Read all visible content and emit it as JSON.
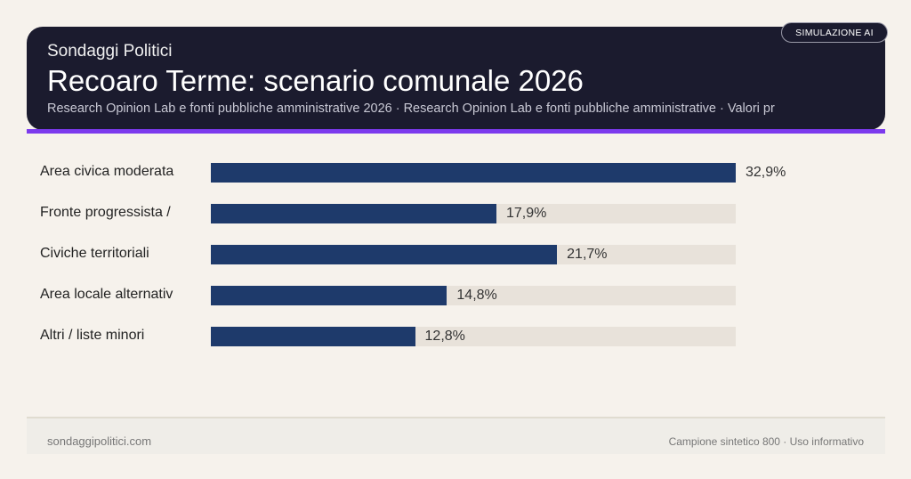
{
  "header": {
    "kicker": "Sondaggi Politici",
    "title": "Recoaro Terme: scenario comunale 2026",
    "subtitle": "Research Opinion Lab e fonti pubbliche amministrative 2026 · Research Opinion Lab e fonti pubbliche amministrative · Valori pr",
    "badge": "SIMULAZIONE AI"
  },
  "colors": {
    "bar": "#1e3a6b",
    "track": "#e8e2da",
    "header": "#1b1b2e",
    "accent": "#7c3aed"
  },
  "chart_data": {
    "type": "bar",
    "orientation": "horizontal",
    "categories": [
      "Area civica moderata",
      "Fronte progressista /",
      "Civiche territoriali",
      "Area locale alternativ",
      "Altri / liste minori"
    ],
    "values": [
      32.9,
      17.9,
      21.7,
      14.8,
      12.8
    ],
    "labels": [
      "32,9%",
      "17,9%",
      "21,7%",
      "14,8%",
      "12,8%"
    ],
    "xlim": [
      0,
      32.9
    ],
    "grid": false
  },
  "footer": {
    "left": "sondaggipolitici.com",
    "right": "Campione sintetico 800 · Uso informativo"
  }
}
